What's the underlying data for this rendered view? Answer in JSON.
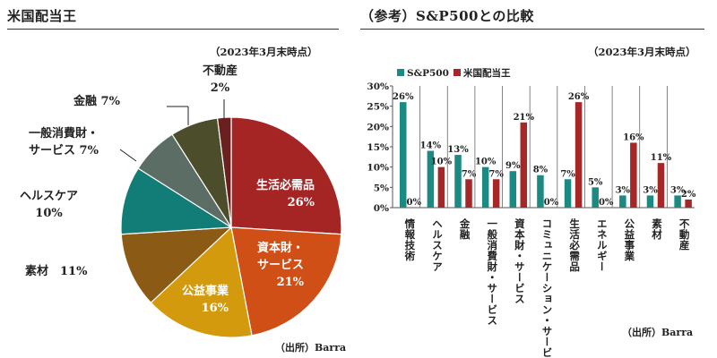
{
  "left": {
    "title": "米国配当王",
    "note": "（2023年3月末時点）",
    "source": "（出所）Barra"
  },
  "right": {
    "title": "（参考）S&P500との比較",
    "note": "（2023年3月末時点）",
    "source": "（出所）Barra"
  },
  "colors": {
    "sp500": "#1a8a83",
    "kings": "#a52727"
  },
  "chart_data": [
    {
      "type": "pie",
      "categories": [
        "生活必需品",
        "資本財・サービス",
        "公益事業",
        "素材",
        "ヘルスケア",
        "一般消費財・サービス",
        "金融",
        "不動産"
      ],
      "values": [
        26,
        21,
        16,
        11,
        10,
        7,
        7,
        2
      ],
      "colors": [
        "#a52525",
        "#cf4f16",
        "#d39a0d",
        "#8b5a15",
        "#127d76",
        "#5c6d66",
        "#4b4d2b",
        "#6b2020"
      ],
      "labels": [
        {
          "name": "生活必需品",
          "value": "26%"
        },
        {
          "name": "資本財・",
          "name2": "サービス",
          "value": "21%"
        },
        {
          "name": "公益事業",
          "value": "16%"
        },
        {
          "name": "素材",
          "value": "11%"
        },
        {
          "name": "ヘルスケア",
          "value": "10%"
        },
        {
          "name": "一般消費財・",
          "name2": "サービス",
          "value": "7%"
        },
        {
          "name": "金融",
          "value": "7%"
        },
        {
          "name": "不動産",
          "value": "2%"
        }
      ]
    },
    {
      "type": "bar",
      "categories": [
        "情報技術",
        "ヘルスケア",
        "金融",
        "一般消費財・サービス",
        "資本財・サービス",
        "コミュニケーション・サービス",
        "生活必需品",
        "エネルギー",
        "公益事業",
        "素材",
        "不動産"
      ],
      "series": [
        {
          "name": "S&P500",
          "values": [
            26,
            14,
            13,
            10,
            9,
            8,
            7,
            5,
            3,
            3,
            3
          ]
        },
        {
          "name": "米国配当王",
          "values": [
            0,
            10,
            7,
            7,
            21,
            0,
            26,
            0,
            16,
            11,
            2
          ]
        }
      ],
      "ylim": [
        0,
        30
      ],
      "yticks": [
        "0%",
        "5%",
        "10%",
        "15%",
        "20%",
        "25%",
        "30%"
      ],
      "legend": "top-left"
    }
  ]
}
